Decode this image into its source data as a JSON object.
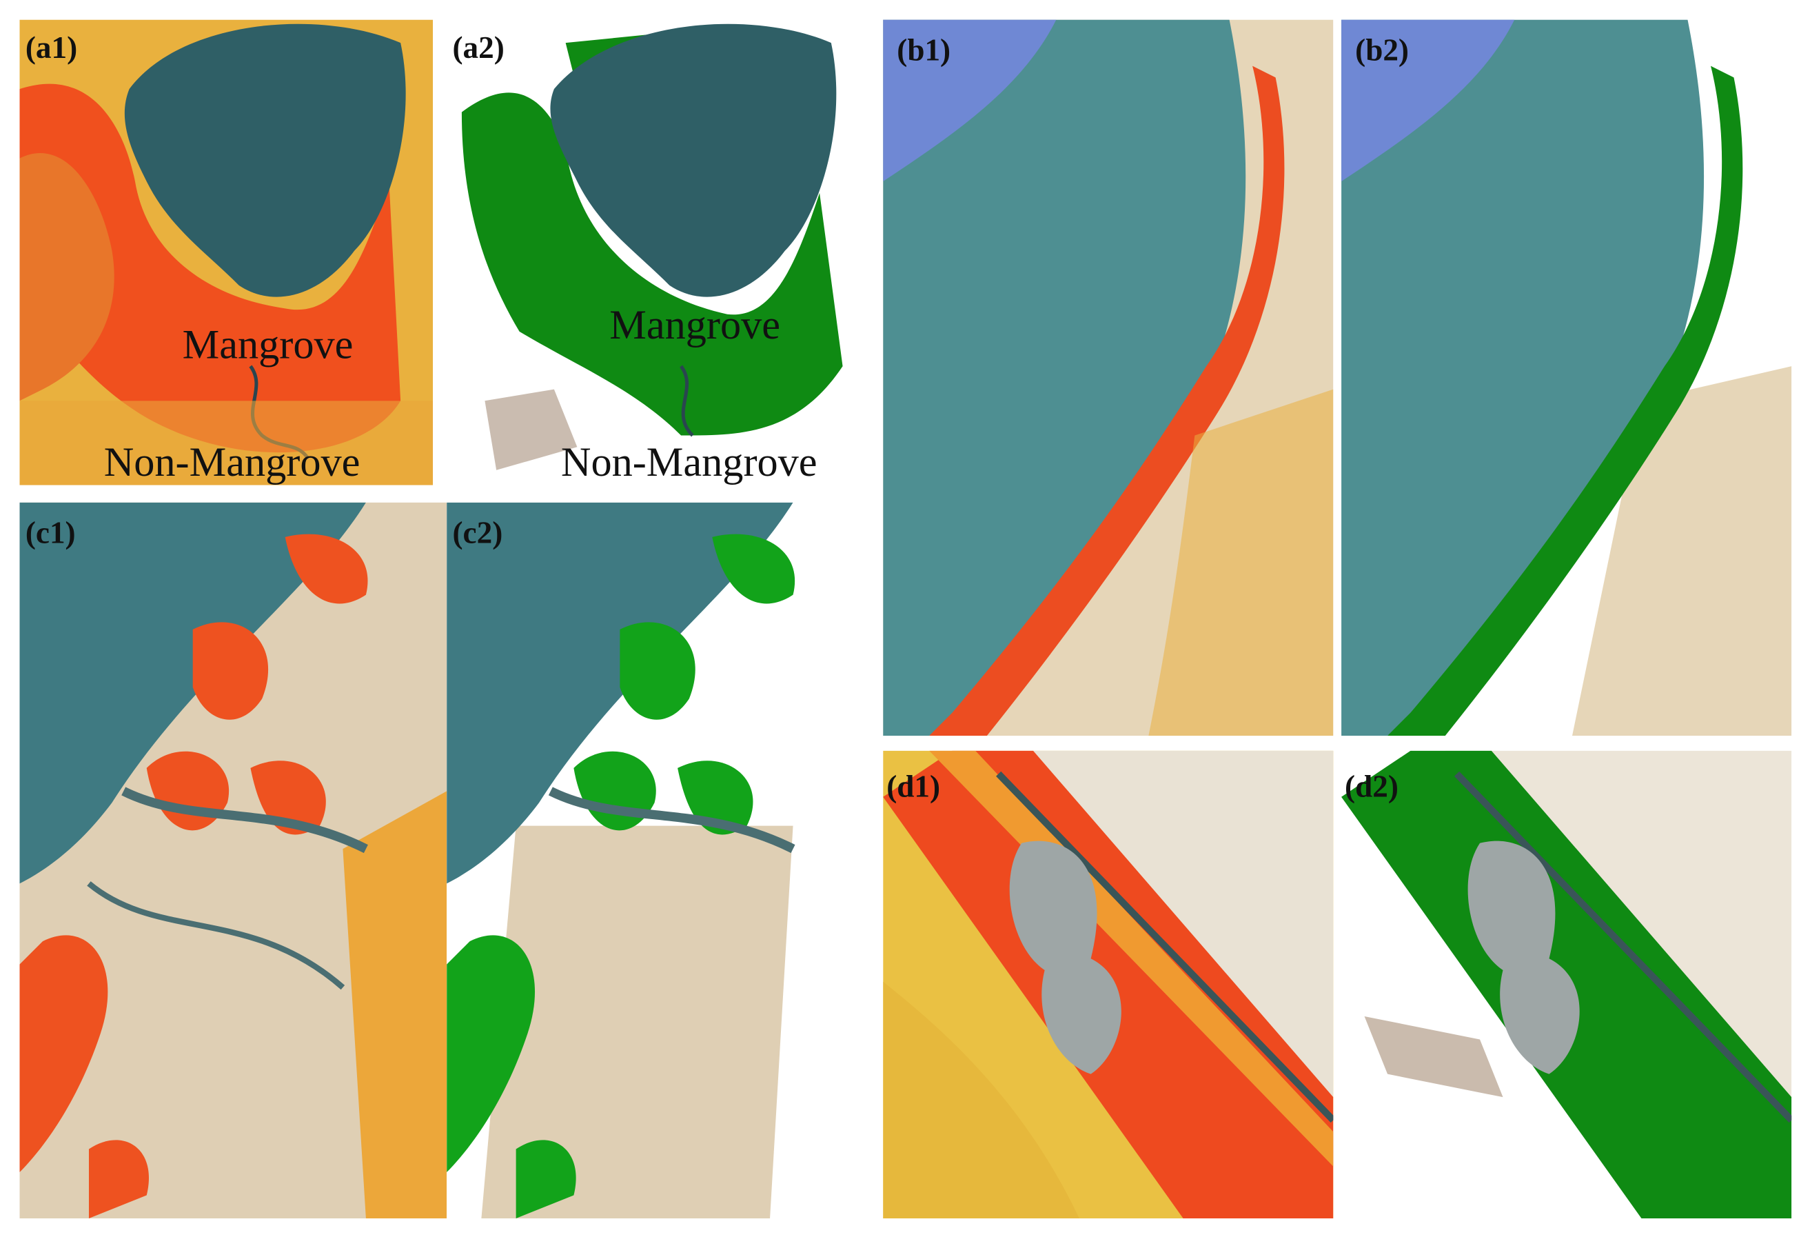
{
  "panels": [
    {
      "label": "(a1)",
      "annotations": [
        "Mangrove",
        "Non-Mangrove"
      ]
    },
    {
      "label": "(a2)",
      "annotations": [
        "Mangrove",
        "Non-Mangrove"
      ]
    },
    {
      "label": "(b1)"
    },
    {
      "label": "(b2)"
    },
    {
      "label": "(c1)"
    },
    {
      "label": "(c2)"
    },
    {
      "label": "(d1)"
    },
    {
      "label": "(d2)"
    }
  ]
}
